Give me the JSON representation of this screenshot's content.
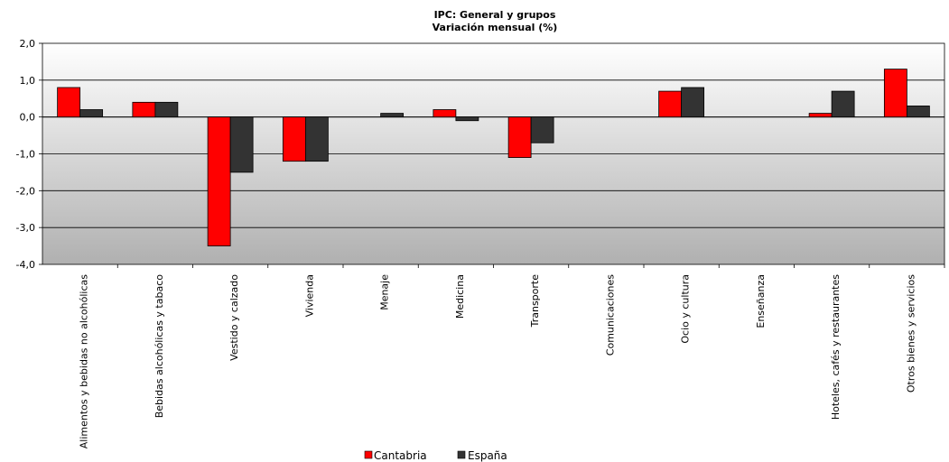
{
  "chart_data": {
    "type": "bar",
    "title": "IPC: General  y grupos",
    "subtitle": "Variación  mensual  (%)",
    "categories": [
      "Alimentos y bebidas no alcohólicas",
      "Bebidas alcohólicas y tabaco",
      "Vestido y calzado",
      "Vivienda",
      "Menaje",
      "Medicina",
      "Transporte",
      "Comunicaciones",
      "Ocio y cultura",
      "Enseñanza",
      "Hoteles, cafés y restaurantes",
      "Otros bienes y servicios"
    ],
    "series": [
      {
        "name": "Cantabria",
        "color": "#ff0000",
        "values": [
          0.8,
          0.4,
          -3.5,
          -1.2,
          0.0,
          0.2,
          -1.1,
          0.0,
          0.7,
          0.0,
          0.1,
          1.3
        ]
      },
      {
        "name": "España",
        "color": "#333333",
        "values": [
          0.2,
          0.4,
          -1.5,
          -1.2,
          0.1,
          -0.1,
          -0.7,
          0.0,
          0.8,
          0.0,
          0.7,
          0.3
        ]
      }
    ],
    "ylim": [
      -4.0,
      2.0
    ],
    "yticks": [
      "2,0",
      "1,0",
      "0,0",
      "-1,0",
      "-2,0",
      "-3,0",
      "-4,0"
    ],
    "ytick_values": [
      2,
      1,
      0,
      -1,
      -2,
      -3,
      -4
    ],
    "grid": true,
    "legend_position": "bottom"
  }
}
